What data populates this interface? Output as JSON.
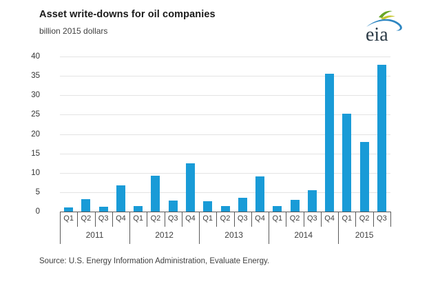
{
  "header": {
    "title": "Asset write-downs for oil companies",
    "units": "billion 2015 dollars"
  },
  "logo": {
    "text": "eia",
    "colors": {
      "leaf_green": "#68a626",
      "leaf_yellow": "#c8c832",
      "swoosh_blue": "#2e86c1",
      "text_color": "#2b3a45"
    }
  },
  "chart_data": {
    "type": "bar",
    "title": "Asset write-downs for oil companies",
    "ylabel": "billion 2015 dollars",
    "groups": [
      {
        "year": "2011",
        "quarters": [
          "Q1",
          "Q2",
          "Q3",
          "Q4"
        ]
      },
      {
        "year": "2012",
        "quarters": [
          "Q1",
          "Q2",
          "Q3",
          "Q4"
        ]
      },
      {
        "year": "2013",
        "quarters": [
          "Q1",
          "Q2",
          "Q3",
          "Q4"
        ]
      },
      {
        "year": "2014",
        "quarters": [
          "Q1",
          "Q2",
          "Q3",
          "Q4"
        ]
      },
      {
        "year": "2015",
        "quarters": [
          "Q1",
          "Q2",
          "Q3"
        ]
      }
    ],
    "values": [
      1.0,
      3.2,
      1.3,
      6.7,
      1.4,
      9.3,
      2.9,
      12.4,
      2.6,
      1.4,
      3.6,
      9.1,
      1.4,
      3.0,
      5.6,
      35.6,
      25.2,
      18.0,
      37.9
    ],
    "ylim": [
      0,
      40
    ],
    "yticks": [
      0,
      5,
      10,
      15,
      20,
      25,
      30,
      35,
      40
    ],
    "bar_color": "#199bd7",
    "gridlines": true,
    "legend": "none"
  },
  "source": {
    "text": "Source:  U.S. Energy Information Administration, Evaluate Energy."
  }
}
